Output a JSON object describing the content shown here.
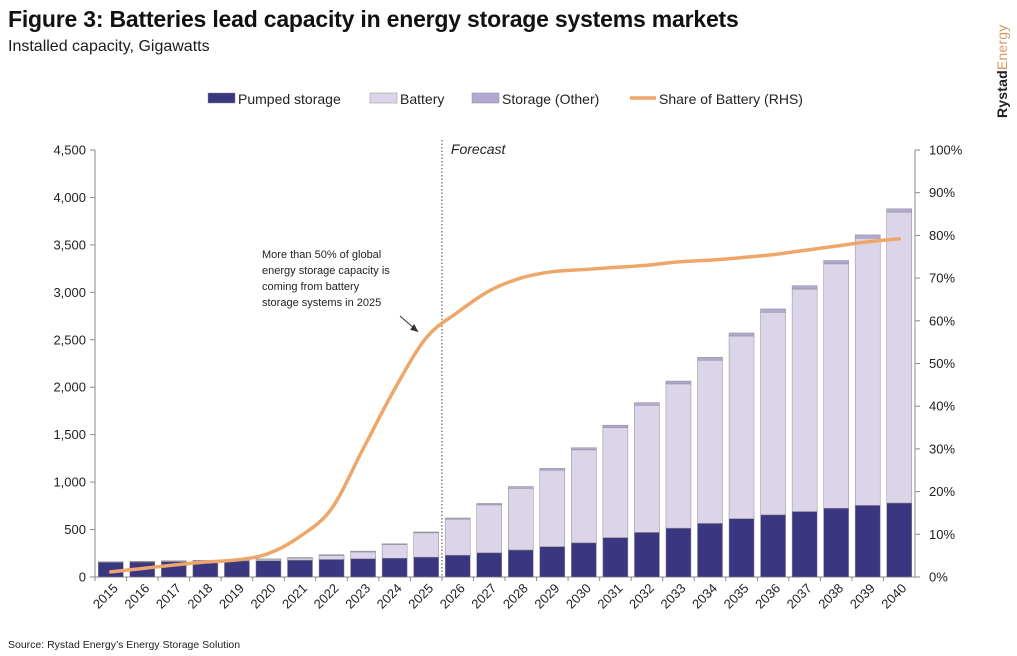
{
  "title": "Figure 3: Batteries lead capacity in energy storage systems markets",
  "subtitle": "Installed capacity, Gigawatts",
  "brand": {
    "part1": "Rystad",
    "part2": "Energy"
  },
  "source": "Source: Rystad Energy’s Energy Storage Solution",
  "colors": {
    "pumped": "#3b3680",
    "battery": "#dcd5ea",
    "other": "#b3a8d2",
    "share": "#eea66a",
    "axis": "#8a8a8a"
  },
  "chart_data": {
    "type": "bar",
    "stacked": true,
    "categories": [
      "2015",
      "2016",
      "2017",
      "2018",
      "2019",
      "2020",
      "2021",
      "2022",
      "2023",
      "2024",
      "2025",
      "2026",
      "2027",
      "2028",
      "2029",
      "2030",
      "2031",
      "2032",
      "2033",
      "2034",
      "2035",
      "2036",
      "2037",
      "2038",
      "2039",
      "2040"
    ],
    "series": [
      {
        "name": "Pumped storage",
        "kind": "bar",
        "axis": "left",
        "values": [
          155,
          158,
          162,
          165,
          170,
          172,
          178,
          185,
          192,
          198,
          210,
          230,
          255,
          285,
          320,
          360,
          415,
          470,
          515,
          565,
          615,
          655,
          690,
          725,
          755,
          780
        ]
      },
      {
        "name": "Battery",
        "kind": "bar",
        "axis": "left",
        "values": [
          2,
          4,
          6,
          8,
          10,
          15,
          20,
          42,
          72,
          143,
          255,
          380,
          505,
          650,
          805,
          980,
          1160,
          1340,
          1520,
          1720,
          1925,
          2135,
          2345,
          2575,
          2815,
          3065
        ]
      },
      {
        "name": "Storage (Other)",
        "kind": "bar",
        "axis": "left",
        "values": [
          3,
          3,
          3,
          3,
          4,
          4,
          7,
          8,
          9,
          9,
          10,
          12,
          15,
          18,
          20,
          22,
          25,
          27,
          30,
          30,
          32,
          35,
          35,
          35,
          35,
          35
        ]
      },
      {
        "name": "Share of Battery (RHS)",
        "kind": "line",
        "axis": "right",
        "values": [
          1.2,
          2.0,
          2.8,
          3.5,
          4.0,
          5.5,
          9.5,
          16,
          30,
          44,
          56,
          62,
          67,
          70,
          71.5,
          72,
          72.5,
          73,
          73.8,
          74.2,
          74.8,
          75.5,
          76.5,
          77.5,
          78.5,
          79.2
        ]
      }
    ],
    "ylim": [
      0,
      4500
    ],
    "y_ticks": [
      "0",
      "500",
      "1,000",
      "1,500",
      "2,000",
      "2,500",
      "3,000",
      "3,500",
      "4,000",
      "4,500"
    ],
    "y2lim": [
      0,
      100
    ],
    "y2_ticks": [
      "0%",
      "10%",
      "20%",
      "30%",
      "40%",
      "50%",
      "60%",
      "70%",
      "80%",
      "90%",
      "100%"
    ],
    "legend_position": "top-center",
    "forecast_label": "Forecast",
    "forecast_after": "2025",
    "annotation": {
      "lines": [
        "More than 50% of global",
        "energy storage capacity is",
        "coming from battery",
        "storage systems in 2025"
      ],
      "points_to": "2025"
    }
  }
}
